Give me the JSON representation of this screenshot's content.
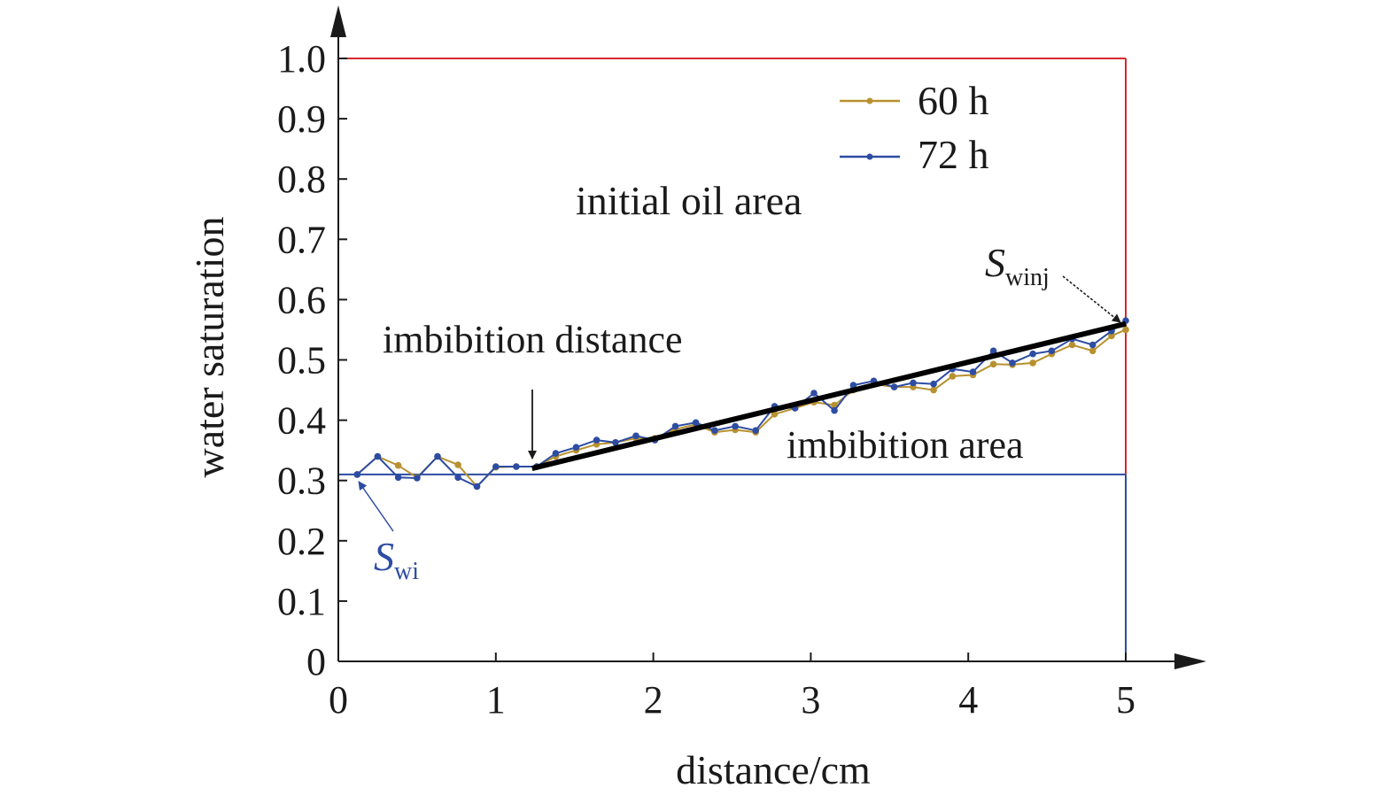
{
  "chart_data": {
    "type": "line",
    "xlabel": "distance/cm",
    "ylabel": "water saturation",
    "xlim": [
      0,
      5
    ],
    "ylim": [
      0,
      1.0
    ],
    "x_ticks": [
      "0",
      "1",
      "2",
      "3",
      "4",
      "5"
    ],
    "y_ticks": [
      "0",
      "0.1",
      "0.2",
      "0.3",
      "0.4",
      "0.5",
      "0.6",
      "0.7",
      "0.8",
      "0.9",
      "1.0"
    ],
    "grid": false,
    "legend_position": "top-right",
    "series": [
      {
        "name": "60 h",
        "color": "#b8912f",
        "x": [
          0.12,
          0.25,
          0.38,
          0.5,
          0.63,
          0.76,
          0.88,
          1.0,
          1.13,
          1.26,
          1.38,
          1.51,
          1.64,
          1.76,
          1.89,
          2.01,
          2.14,
          2.27,
          2.39,
          2.52,
          2.65,
          2.77,
          2.9,
          3.02,
          3.15,
          3.27,
          3.4,
          3.53,
          3.65,
          3.78,
          3.9,
          4.03,
          4.16,
          4.28,
          4.41,
          4.53,
          4.66,
          4.79,
          4.91,
          5.0
        ],
        "values": [
          0.31,
          0.34,
          0.325,
          0.305,
          0.34,
          0.326,
          0.29,
          0.322,
          0.323,
          0.323,
          0.34,
          0.35,
          0.36,
          0.363,
          0.37,
          0.37,
          0.385,
          0.393,
          0.38,
          0.384,
          0.38,
          0.41,
          0.42,
          0.43,
          0.425,
          0.45,
          0.46,
          0.455,
          0.455,
          0.45,
          0.473,
          0.475,
          0.493,
          0.492,
          0.495,
          0.51,
          0.525,
          0.515,
          0.54,
          0.55
        ]
      },
      {
        "name": "72 h",
        "color": "#2d4ca3",
        "x": [
          0.12,
          0.25,
          0.38,
          0.5,
          0.63,
          0.76,
          0.88,
          1.0,
          1.13,
          1.26,
          1.38,
          1.51,
          1.64,
          1.76,
          1.89,
          2.01,
          2.14,
          2.27,
          2.39,
          2.52,
          2.65,
          2.77,
          2.9,
          3.02,
          3.15,
          3.27,
          3.4,
          3.53,
          3.65,
          3.78,
          3.9,
          4.03,
          4.16,
          4.28,
          4.41,
          4.53,
          4.66,
          4.79,
          4.91,
          5.0
        ],
        "values": [
          0.31,
          0.34,
          0.305,
          0.304,
          0.34,
          0.305,
          0.29,
          0.323,
          0.323,
          0.323,
          0.345,
          0.355,
          0.367,
          0.363,
          0.374,
          0.367,
          0.39,
          0.396,
          0.383,
          0.39,
          0.383,
          0.423,
          0.42,
          0.445,
          0.416,
          0.458,
          0.465,
          0.455,
          0.462,
          0.46,
          0.485,
          0.48,
          0.515,
          0.495,
          0.51,
          0.515,
          0.535,
          0.525,
          0.548,
          0.565
        ]
      }
    ],
    "reference_lines": {
      "initial_water_saturation": {
        "y": 0.31,
        "color": "#2d4ca3"
      },
      "initial_oil_boundary": {
        "y": 1.0,
        "x_end": 5.0,
        "color": "#d42a2a"
      }
    },
    "trend_line": {
      "x": [
        1.23,
        5.0
      ],
      "y": [
        0.32,
        0.56
      ],
      "color": "#000000"
    },
    "annotations": {
      "initial_oil_area": {
        "text": "initial oil area",
        "color": "#d42a2a"
      },
      "imbibition_distance": {
        "text": "imbibition distance",
        "arrow_to": [
          1.23,
          0.32
        ]
      },
      "imbibition_area": {
        "text": "imbibition area"
      },
      "swi": {
        "main": "S",
        "sub": "wi",
        "color": "#2d4ca3",
        "arrow_to": [
          0.12,
          0.31
        ]
      },
      "swinj": {
        "main": "S",
        "sub": "winj",
        "color": "#000000",
        "arrow_to": [
          5.0,
          0.56
        ]
      }
    }
  }
}
